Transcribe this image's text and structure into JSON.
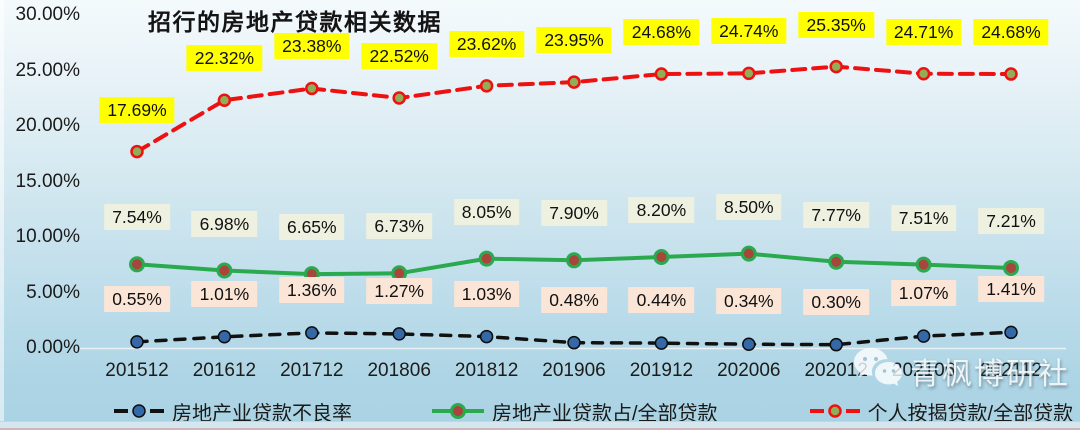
{
  "title": "招行的房地产贷款相关数据",
  "chart_data": {
    "type": "line",
    "categories": [
      "201512",
      "201612",
      "201712",
      "201806",
      "201812",
      "201906",
      "201912",
      "202006",
      "202012",
      "202106",
      "202112"
    ],
    "ylim": [
      0,
      30
    ],
    "y_ticks": [
      "30.00%",
      "25.00%",
      "20.00%",
      "15.00%",
      "10.00%",
      "5.00%",
      "0.00%"
    ],
    "y_tick_values": [
      30,
      25,
      20,
      15,
      10,
      5,
      0
    ],
    "grid": false,
    "legend_position": "bottom",
    "series": [
      {
        "name": "房地产业贷款不良率",
        "values": [
          0.55,
          1.01,
          1.36,
          1.27,
          1.03,
          0.48,
          0.44,
          0.34,
          0.3,
          1.07,
          1.41
        ],
        "line_color": "#111111",
        "line_style": "dashed",
        "marker_color": "#3468a6",
        "marker_ring": "#0d0d0d",
        "label_bg": "#fbe5d6"
      },
      {
        "name": "房地产业贷款占/全部贷款",
        "values": [
          7.54,
          6.98,
          6.65,
          6.73,
          8.05,
          7.9,
          8.2,
          8.5,
          7.77,
          7.51,
          7.21
        ],
        "line_color": "#2ba94f",
        "line_style": "solid",
        "marker_color": "#a8453c",
        "marker_ring": "#2ba94f",
        "label_bg": "#eef1e0"
      },
      {
        "name": "个人按揭贷款/全部贷款",
        "values": [
          17.69,
          22.32,
          23.38,
          22.52,
          23.62,
          23.95,
          24.68,
          24.74,
          25.35,
          24.71,
          24.68
        ],
        "line_color": "#ee1111",
        "line_style": "dashed",
        "marker_color": "#8fae57",
        "marker_ring": "#ee1111",
        "label_bg": "#ffff00"
      }
    ]
  },
  "watermark": {
    "text": "青枫博研社",
    "icon": "wechat-icon"
  },
  "colors": {
    "bg_top": "#f4fafc",
    "bg_bottom": "#a9d2e2",
    "axis_line": "#eaf0f2",
    "footer_strip": "#d4e7ef"
  }
}
